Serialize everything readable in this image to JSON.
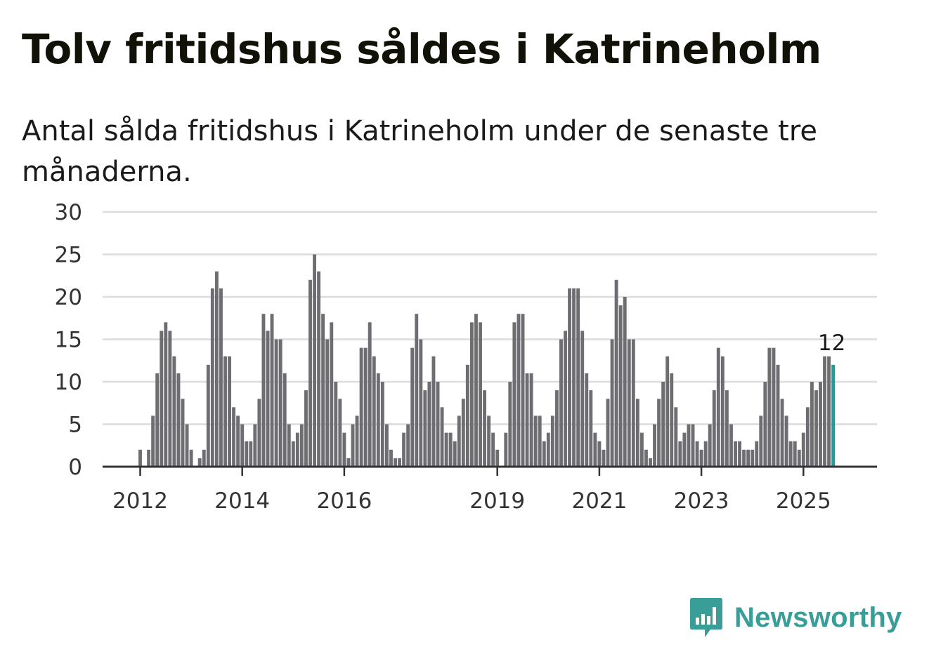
{
  "title": "Tolv fritidshus såldes i Katrineholm",
  "subtitle": "Antal sålda fritidshus i Katrineholm under de senaste tre månaderna.",
  "brand": {
    "name": "Newsworthy",
    "color": "#3a9e98",
    "icon": "bar-chart-speech-bubble-icon"
  },
  "chart_data": {
    "type": "bar",
    "start": "2012-01",
    "frequency": "monthly",
    "ylim": [
      0,
      30
    ],
    "yticks": [
      0,
      5,
      10,
      15,
      20,
      25,
      30
    ],
    "xticks": [
      "2012",
      "2014",
      "2016",
      "2019",
      "2021",
      "2023",
      "2025"
    ],
    "bar_color": "#6d6d72",
    "highlight_color": "#1f9d96",
    "highlight_label": "12",
    "values": [
      2,
      0,
      2,
      6,
      11,
      16,
      17,
      16,
      13,
      11,
      8,
      5,
      2,
      0,
      1,
      2,
      12,
      21,
      23,
      21,
      13,
      13,
      7,
      6,
      5,
      3,
      3,
      5,
      8,
      18,
      16,
      18,
      15,
      15,
      11,
      5,
      3,
      4,
      5,
      9,
      22,
      25,
      23,
      18,
      15,
      17,
      10,
      8,
      4,
      1,
      5,
      6,
      14,
      14,
      17,
      13,
      11,
      10,
      5,
      2,
      1,
      1,
      4,
      5,
      14,
      18,
      15,
      9,
      10,
      13,
      10,
      7,
      4,
      4,
      3,
      6,
      8,
      12,
      17,
      18,
      17,
      9,
      6,
      4,
      2,
      0,
      4,
      10,
      17,
      18,
      18,
      11,
      11,
      6,
      6,
      3,
      4,
      6,
      9,
      15,
      16,
      21,
      21,
      21,
      16,
      11,
      9,
      4,
      3,
      2,
      8,
      15,
      22,
      19,
      20,
      15,
      15,
      8,
      4,
      2,
      1,
      5,
      8,
      10,
      13,
      11,
      7,
      3,
      4,
      5,
      5,
      3,
      2,
      3,
      5,
      9,
      14,
      13,
      9,
      5,
      3,
      3,
      2,
      2,
      2,
      3,
      6,
      10,
      14,
      14,
      12,
      8,
      6,
      3,
      3,
      2,
      4,
      7,
      10,
      9,
      10,
      13,
      13,
      12
    ]
  }
}
